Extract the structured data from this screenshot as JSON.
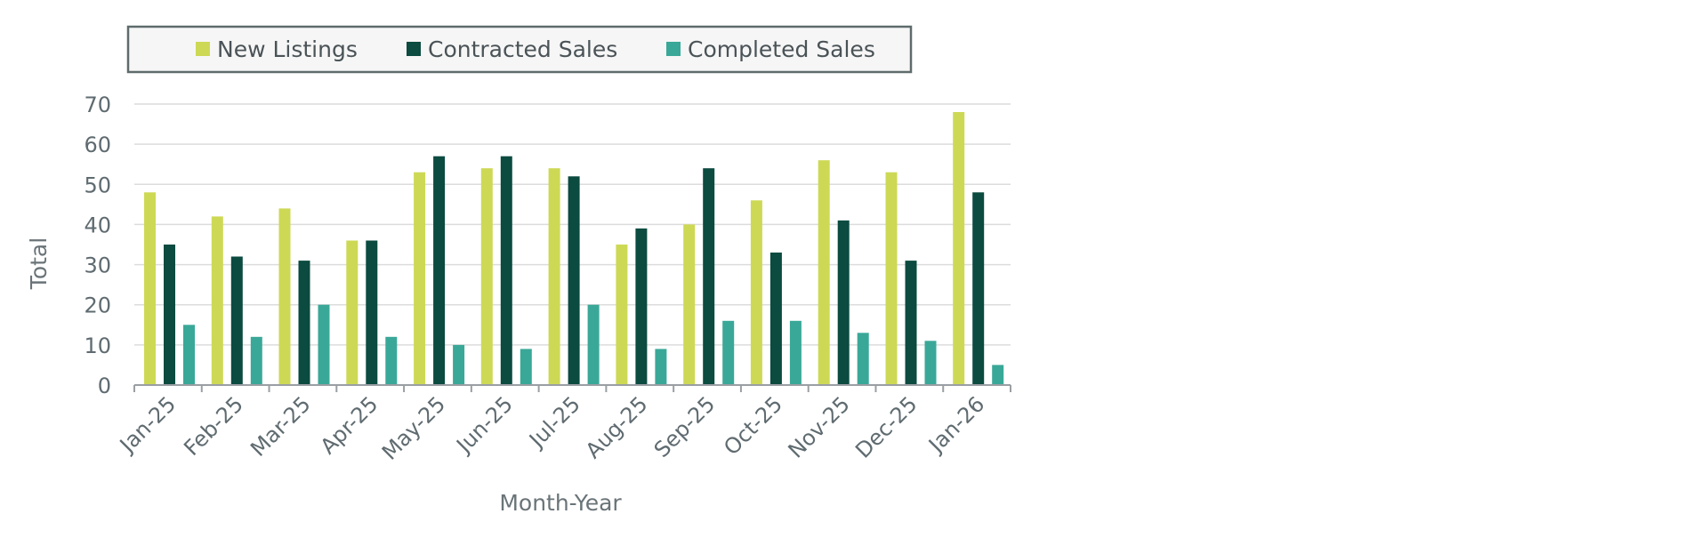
{
  "chart_data": {
    "type": "bar",
    "title": "",
    "xlabel": "Month-Year",
    "ylabel": "Total",
    "ylim": [
      0,
      70
    ],
    "yticks": [
      0,
      10,
      20,
      30,
      40,
      50,
      60,
      70
    ],
    "grid": true,
    "legend_position": "top",
    "categories": [
      "Jan-25",
      "Feb-25",
      "Mar-25",
      "Apr-25",
      "May-25",
      "Jun-25",
      "Jul-25",
      "Aug-25",
      "Sep-25",
      "Oct-25",
      "Nov-25",
      "Dec-25",
      "Jan-26"
    ],
    "series": [
      {
        "name": "New Listings",
        "color": "#cdd955",
        "values": [
          48,
          42,
          44,
          36,
          53,
          54,
          54,
          35,
          40,
          46,
          56,
          53,
          68
        ]
      },
      {
        "name": "Contracted Sales",
        "color": "#0b4b40",
        "values": [
          35,
          32,
          31,
          36,
          57,
          57,
          52,
          39,
          54,
          33,
          41,
          31,
          48
        ]
      },
      {
        "name": "Completed Sales",
        "color": "#3aa898",
        "values": [
          15,
          12,
          20,
          12,
          10,
          9,
          20,
          9,
          16,
          16,
          13,
          11,
          5
        ]
      }
    ]
  }
}
